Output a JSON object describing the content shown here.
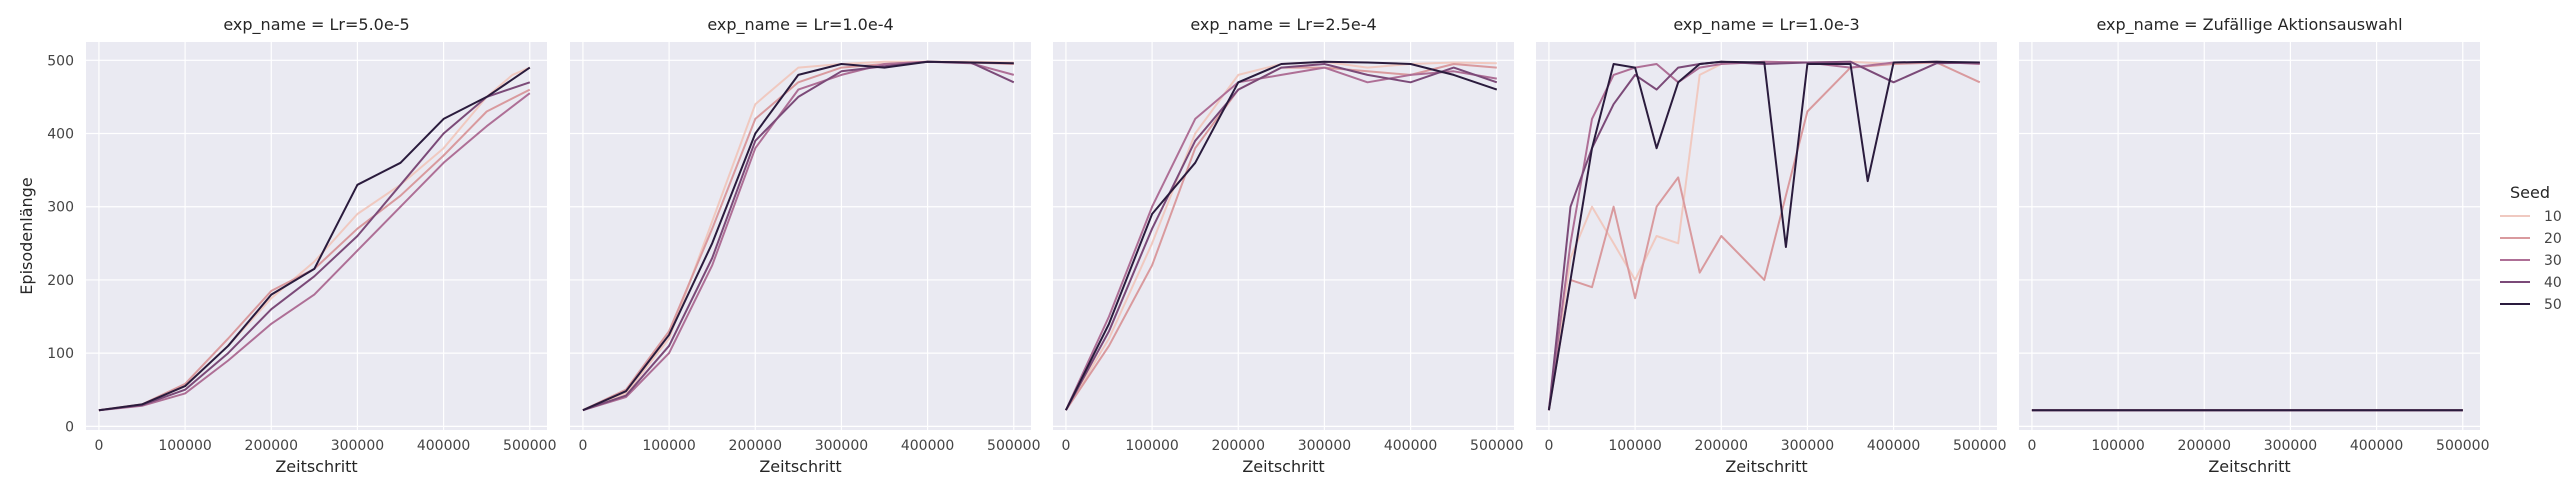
{
  "chart_data": {
    "type": "line",
    "ylabel": "Episodenlänge",
    "xlabel": "Zeitschritt",
    "xlim": [
      -15000,
      520000
    ],
    "ylim": [
      -5,
      525
    ],
    "xticks": [
      0,
      100000,
      200000,
      300000,
      400000,
      500000
    ],
    "xtick_labels": [
      "0",
      "100000",
      "200000",
      "300000",
      "400000",
      "500000"
    ],
    "yticks": [
      0,
      100,
      200,
      300,
      400,
      500
    ],
    "ytick_labels": [
      "0",
      "100",
      "200",
      "300",
      "400",
      "500"
    ],
    "grid": true,
    "legend": {
      "title": "Seed",
      "placement": "right",
      "entries": [
        "10",
        "20",
        "30",
        "40",
        "50"
      ],
      "colors": [
        "#f0c9c0",
        "#d99a9e",
        "#ae6f96",
        "#7b4a78",
        "#2a1b3d"
      ]
    },
    "panels": [
      {
        "title": "exp_name = Lr=5.0e-5",
        "series": [
          {
            "name": "10",
            "x": [
              0,
              50000,
              100000,
              150000,
              200000,
              250000,
              300000,
              350000,
              400000,
              450000,
              480000,
              500000
            ],
            "y": [
              22,
              30,
              55,
              110,
              175,
              225,
              290,
              330,
              380,
              450,
              480,
              490
            ]
          },
          {
            "name": "20",
            "x": [
              0,
              50000,
              100000,
              150000,
              200000,
              250000,
              300000,
              350000,
              400000,
              450000,
              500000
            ],
            "y": [
              22,
              30,
              58,
              120,
              185,
              215,
              270,
              315,
              370,
              430,
              460
            ]
          },
          {
            "name": "30",
            "x": [
              0,
              50000,
              100000,
              150000,
              200000,
              250000,
              300000,
              350000,
              400000,
              450000,
              500000
            ],
            "y": [
              22,
              28,
              45,
              90,
              140,
              180,
              240,
              300,
              360,
              410,
              455
            ]
          },
          {
            "name": "40",
            "x": [
              0,
              50000,
              100000,
              150000,
              200000,
              250000,
              300000,
              350000,
              400000,
              450000,
              500000
            ],
            "y": [
              22,
              29,
              50,
              100,
              160,
              205,
              260,
              330,
              400,
              450,
              470
            ]
          },
          {
            "name": "50",
            "x": [
              0,
              50000,
              100000,
              150000,
              200000,
              250000,
              300000,
              350000,
              400000,
              450000,
              500000
            ],
            "y": [
              22,
              30,
              55,
              110,
              180,
              215,
              330,
              360,
              420,
              450,
              490
            ]
          }
        ]
      },
      {
        "title": "exp_name = Lr=1.0e-4",
        "series": [
          {
            "name": "10",
            "x": [
              0,
              50000,
              100000,
              150000,
              200000,
              250000,
              300000,
              350000,
              400000,
              450000,
              500000
            ],
            "y": [
              22,
              45,
              120,
              280,
              440,
              490,
              495,
              498,
              498,
              498,
              497
            ]
          },
          {
            "name": "20",
            "x": [
              0,
              50000,
              100000,
              150000,
              200000,
              250000,
              300000,
              350000,
              400000,
              450000,
              500000
            ],
            "y": [
              22,
              50,
              130,
              270,
              420,
              470,
              490,
              495,
              498,
              497,
              495
            ]
          },
          {
            "name": "30",
            "x": [
              0,
              50000,
              100000,
              150000,
              200000,
              250000,
              300000,
              350000,
              400000,
              450000,
              500000
            ],
            "y": [
              22,
              40,
              100,
              220,
              380,
              460,
              480,
              495,
              498,
              496,
              480
            ]
          },
          {
            "name": "40",
            "x": [
              0,
              50000,
              100000,
              150000,
              200000,
              250000,
              300000,
              350000,
              400000,
              450000,
              500000
            ],
            "y": [
              22,
              42,
              110,
              230,
              390,
              450,
              485,
              492,
              498,
              497,
              470
            ]
          },
          {
            "name": "50",
            "x": [
              0,
              50000,
              100000,
              150000,
              200000,
              250000,
              300000,
              350000,
              400000,
              450000,
              500000
            ],
            "y": [
              22,
              48,
              125,
              250,
              400,
              480,
              495,
              490,
              498,
              497,
              496
            ]
          }
        ]
      },
      {
        "title": "exp_name = Lr=2.5e-4",
        "series": [
          {
            "name": "10",
            "x": [
              0,
              50000,
              100000,
              150000,
              200000,
              250000,
              300000,
              350000,
              400000,
              450000,
              500000
            ],
            "y": [
              22,
              120,
              250,
              400,
              480,
              495,
              498,
              490,
              495,
              497,
              496
            ]
          },
          {
            "name": "20",
            "x": [
              0,
              50000,
              100000,
              150000,
              200000,
              250000,
              300000,
              350000,
              400000,
              450000,
              500000
            ],
            "y": [
              22,
              110,
              220,
              380,
              460,
              490,
              490,
              485,
              480,
              495,
              490
            ]
          },
          {
            "name": "30",
            "x": [
              0,
              50000,
              100000,
              150000,
              200000,
              250000,
              300000,
              350000,
              400000,
              450000,
              500000
            ],
            "y": [
              22,
              150,
              300,
              420,
              470,
              480,
              490,
              470,
              480,
              485,
              475
            ]
          },
          {
            "name": "40",
            "x": [
              0,
              50000,
              100000,
              150000,
              200000,
              250000,
              300000,
              350000,
              400000,
              450000,
              500000
            ],
            "y": [
              22,
              130,
              270,
              390,
              460,
              490,
              495,
              480,
              470,
              490,
              470
            ]
          },
          {
            "name": "50",
            "x": [
              0,
              50000,
              100000,
              150000,
              200000,
              250000,
              300000,
              350000,
              400000,
              450000,
              500000
            ],
            "y": [
              22,
              140,
              290,
              360,
              470,
              495,
              498,
              497,
              495,
              480,
              460
            ]
          }
        ]
      },
      {
        "title": "exp_name = Lr=1.0e-3",
        "series": [
          {
            "name": "10",
            "x": [
              0,
              25000,
              50000,
              75000,
              100000,
              125000,
              150000,
              175000,
              200000,
              250000,
              300000,
              350000,
              400000,
              450000,
              500000
            ],
            "y": [
              22,
              230,
              300,
              250,
              200,
              260,
              250,
              480,
              495,
              498,
              497,
              498,
              495,
              498,
              496
            ]
          },
          {
            "name": "20",
            "x": [
              0,
              25000,
              50000,
              75000,
              100000,
              125000,
              150000,
              175000,
              200000,
              250000,
              300000,
              350000,
              400000,
              450000,
              500000
            ],
            "y": [
              22,
              200,
              190,
              300,
              175,
              300,
              340,
              210,
              260,
              200,
              430,
              490,
              495,
              497,
              470
            ]
          },
          {
            "name": "30",
            "x": [
              0,
              25000,
              50000,
              75000,
              100000,
              125000,
              150000,
              175000,
              200000,
              250000,
              300000,
              350000,
              400000,
              450000,
              500000
            ],
            "y": [
              22,
              250,
              420,
              480,
              490,
              495,
              470,
              490,
              495,
              498,
              497,
              490,
              497,
              498,
              495
            ]
          },
          {
            "name": "40",
            "x": [
              0,
              25000,
              50000,
              75000,
              100000,
              125000,
              150000,
              175000,
              200000,
              250000,
              300000,
              350000,
              400000,
              450000,
              500000
            ],
            "y": [
              22,
              300,
              380,
              440,
              480,
              460,
              490,
              495,
              498,
              495,
              497,
              498,
              470,
              496,
              497
            ]
          },
          {
            "name": "50",
            "x": [
              0,
              25000,
              50000,
              75000,
              100000,
              125000,
              150000,
              175000,
              200000,
              250000,
              275000,
              300000,
              350000,
              370000,
              400000,
              450000,
              500000
            ],
            "y": [
              22,
              200,
              380,
              495,
              490,
              380,
              470,
              495,
              498,
              497,
              245,
              495,
              495,
              335,
              497,
              498,
              497
            ]
          }
        ]
      },
      {
        "title": "exp_name = Zufällige Aktionsauswahl",
        "series": [
          {
            "name": "10",
            "x": [
              0,
              500000
            ],
            "y": [
              22,
              22
            ]
          },
          {
            "name": "20",
            "x": [
              0,
              500000
            ],
            "y": [
              22,
              22
            ]
          },
          {
            "name": "30",
            "x": [
              0,
              500000
            ],
            "y": [
              22,
              22
            ]
          },
          {
            "name": "40",
            "x": [
              0,
              500000
            ],
            "y": [
              22,
              22
            ]
          },
          {
            "name": "50",
            "x": [
              0,
              500000
            ],
            "y": [
              22,
              22
            ]
          }
        ]
      }
    ]
  }
}
